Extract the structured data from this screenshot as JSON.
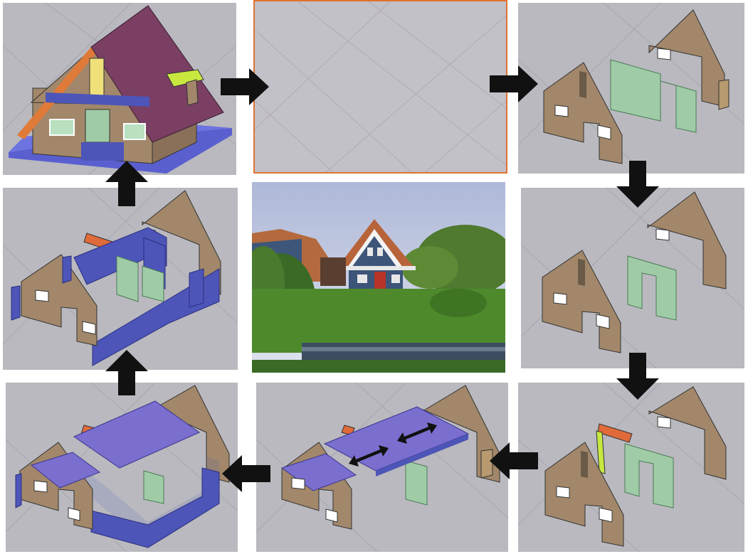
{
  "figure": {
    "panels": [
      {
        "id": "p1",
        "content": "house-model-complete"
      },
      {
        "id": "p2",
        "content": "empty-grid"
      },
      {
        "id": "p3",
        "content": "two-gables-and-green-walls"
      },
      {
        "id": "p4",
        "content": "two-gables-one-green-wall"
      },
      {
        "id": "p5",
        "content": "gables-walls-orange-beam"
      },
      {
        "id": "p6",
        "content": "gables-with-floor-slab"
      },
      {
        "id": "p7",
        "content": "gables-with-roof-slab"
      },
      {
        "id": "p8",
        "content": "gables-with-blue-walls"
      },
      {
        "id": "p9",
        "content": "photo-of-real-house"
      }
    ],
    "sequence": [
      "p1",
      "p2",
      "p3",
      "p4",
      "p5",
      "p6",
      "p7",
      "p8",
      "p1"
    ],
    "arrows": [
      {
        "id": "a1",
        "direction": "right"
      },
      {
        "id": "a2",
        "direction": "right"
      },
      {
        "id": "a3",
        "direction": "down"
      },
      {
        "id": "a4",
        "direction": "down"
      },
      {
        "id": "a5",
        "direction": "left"
      },
      {
        "id": "a6",
        "direction": "left"
      },
      {
        "id": "a7",
        "direction": "up"
      },
      {
        "id": "a8",
        "direction": "up"
      }
    ],
    "colors": {
      "panel_bg": "#b9b9bf",
      "grid_line": "#a8a7b0",
      "wood": "#a2876a",
      "wall_green": "#9fcca6",
      "wall_blue": "#4d55b8",
      "slab_purple": "#7a6fcf",
      "roof": "#7a3f63",
      "beam_orange": "#e06a3a",
      "selection_border": "#e07030",
      "arrow": "#111111"
    }
  }
}
